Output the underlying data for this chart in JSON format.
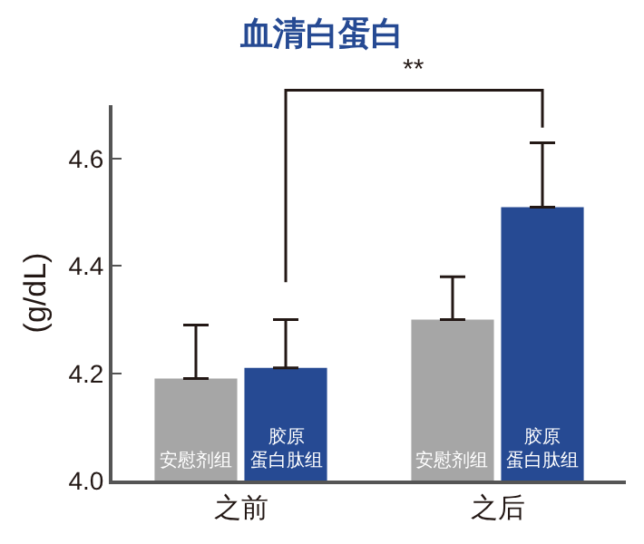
{
  "chart_data": {
    "type": "bar",
    "title": "血清白蛋白",
    "ylabel": "(g/dL)",
    "categories": [
      "之前",
      "之后"
    ],
    "series": [
      {
        "name": "安慰剂组",
        "color": "#a6a6a6",
        "values": [
          4.19,
          4.3
        ],
        "errors": [
          [
            4.19,
            4.29
          ],
          [
            4.3,
            4.38
          ]
        ]
      },
      {
        "name": "胶原蛋白肽组",
        "color": "#264a93",
        "values": [
          4.21,
          4.51
        ],
        "errors": [
          [
            4.21,
            4.3
          ],
          [
            4.51,
            4.63
          ]
        ]
      }
    ],
    "ylim": [
      4.0,
      4.7
    ],
    "yticks": [
      {
        "value": 4,
        "label": "4.0"
      },
      4.2,
      4.4,
      4.6
    ],
    "grid": false,
    "legend": false,
    "annotations": [
      "**"
    ]
  }
}
